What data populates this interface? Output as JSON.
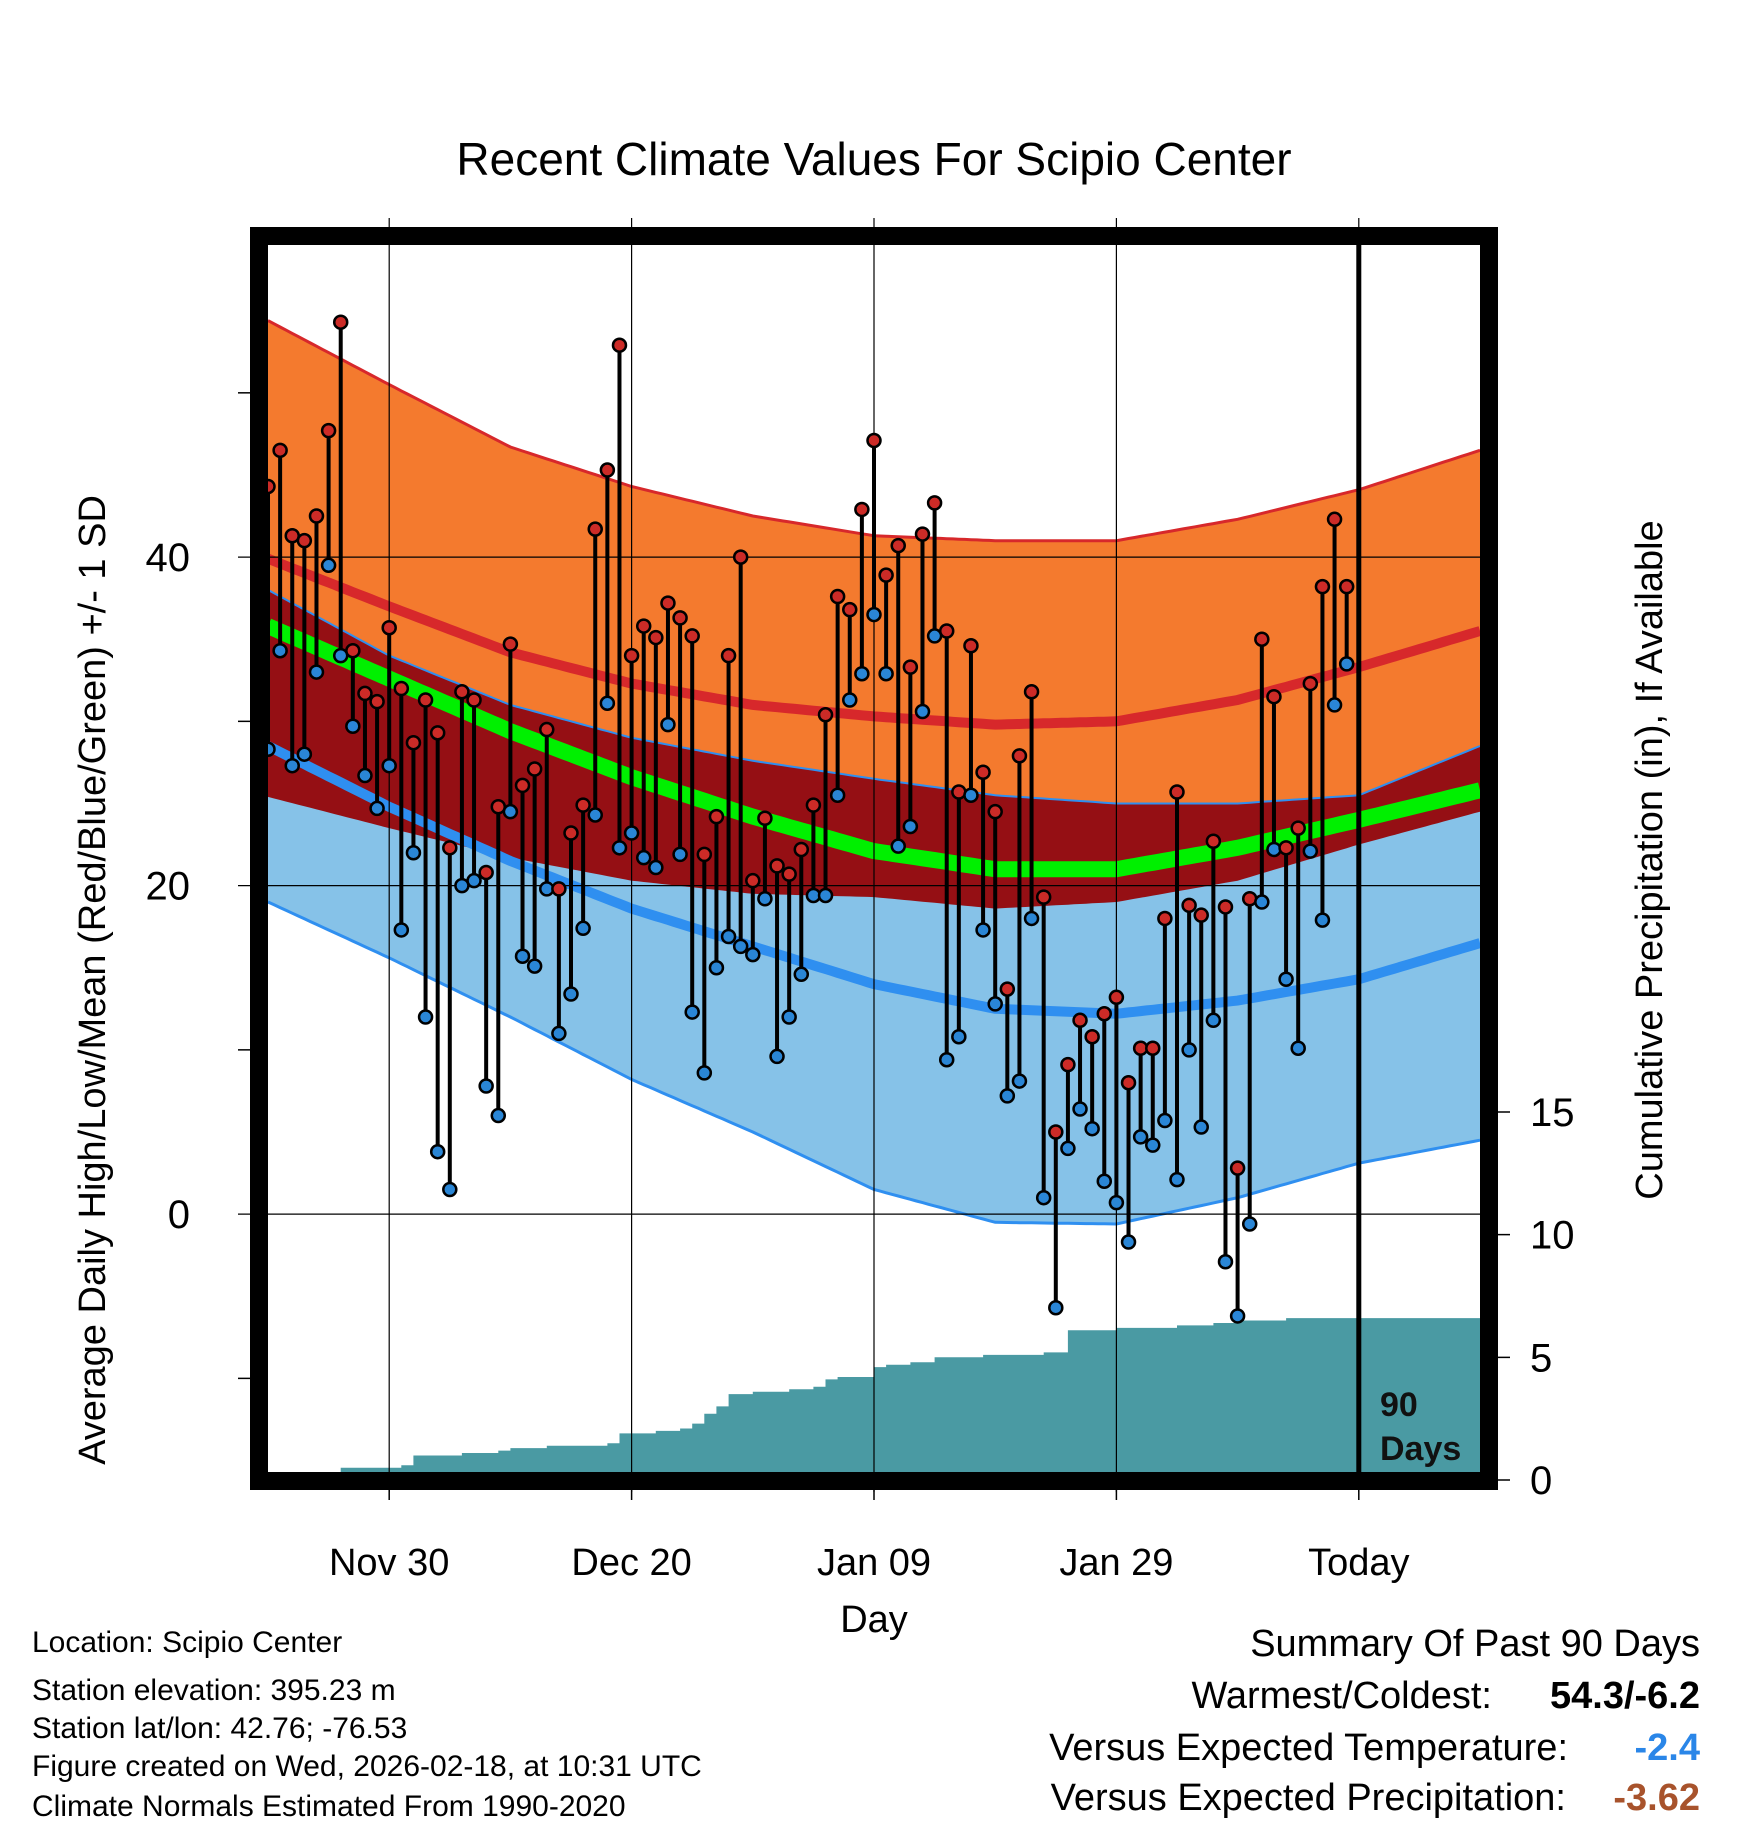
{
  "chart_data": {
    "type": "line",
    "title": "Recent Climate Values For Scipio Center",
    "xlabel": "Day",
    "ylabel_left": "Average Daily High/Low/Mean (Red/Blue/Green) +/- 1 SD",
    "ylabel_right": "Cumulative Precipitation (in), If Available",
    "x_ticks": [
      {
        "day": 20,
        "label": "Nov 30"
      },
      {
        "day": 40,
        "label": "Dec 20"
      },
      {
        "day": 60,
        "label": "Jan 09"
      },
      {
        "day": 80,
        "label": "Jan 29"
      },
      {
        "day": 100,
        "label": "Today"
      }
    ],
    "xlim": [
      10,
      110
    ],
    "ylim": [
      -15.7,
      59.0
    ],
    "y_ticks": [
      0,
      20,
      40
    ],
    "precip_ticks": [
      0,
      5,
      10,
      15
    ],
    "precip_axis_max": 15,
    "days_marker": {
      "day": 100,
      "label_line1": "90",
      "label_line2": "Days"
    },
    "normals": [
      {
        "day": 10,
        "high": 39.9,
        "high_sd": 14.5,
        "low": 28.5,
        "low_sd": 9.5,
        "mean": 35.8
      },
      {
        "day": 20,
        "high": 37.0,
        "high_sd": 13.5,
        "low": 24.8,
        "low_sd": 9.2,
        "mean": 32.6
      },
      {
        "day": 30,
        "high": 34.2,
        "high_sd": 12.5,
        "low": 21.5,
        "low_sd": 9.5,
        "mean": 29.4
      },
      {
        "day": 40,
        "high": 32.3,
        "high_sd": 12.0,
        "low": 18.6,
        "low_sd": 10.4,
        "mean": 26.6
      },
      {
        "day": 50,
        "high": 31.0,
        "high_sd": 11.5,
        "low": 16.3,
        "low_sd": 11.3,
        "mean": 24.2
      },
      {
        "day": 60,
        "high": 30.3,
        "high_sd": 11.0,
        "low": 14.0,
        "low_sd": 12.5,
        "mean": 22.1
      },
      {
        "day": 70,
        "high": 29.8,
        "high_sd": 11.2,
        "low": 12.5,
        "low_sd": 13.0,
        "mean": 21.0
      },
      {
        "day": 80,
        "high": 30.0,
        "high_sd": 11.0,
        "low": 12.2,
        "low_sd": 12.8,
        "mean": 21.0
      },
      {
        "day": 90,
        "high": 31.3,
        "high_sd": 11.0,
        "low": 13.0,
        "low_sd": 12.0,
        "mean": 22.3
      },
      {
        "day": 100,
        "high": 33.3,
        "high_sd": 10.8,
        "low": 14.3,
        "low_sd": 11.2,
        "mean": 24.0
      },
      {
        "day": 110,
        "high": 35.5,
        "high_sd": 11.0,
        "low": 16.5,
        "low_sd": 12.0,
        "mean": 25.8
      }
    ],
    "daily": [
      {
        "day": 10,
        "high": 44.3,
        "low": 28.3
      },
      {
        "day": 11,
        "high": 46.5,
        "low": 34.3
      },
      {
        "day": 12,
        "high": 41.3,
        "low": 27.3
      },
      {
        "day": 13,
        "high": 41.0,
        "low": 28.0
      },
      {
        "day": 14,
        "high": 42.5,
        "low": 33.0
      },
      {
        "day": 15,
        "high": 47.7,
        "low": 39.5
      },
      {
        "day": 16,
        "high": 54.3,
        "low": 34.0
      },
      {
        "day": 17,
        "high": 34.3,
        "low": 29.7
      },
      {
        "day": 18,
        "high": 31.7,
        "low": 26.7
      },
      {
        "day": 19,
        "high": 31.2,
        "low": 24.7
      },
      {
        "day": 20,
        "high": 35.7,
        "low": 27.3
      },
      {
        "day": 21,
        "high": 32.0,
        "low": 17.3
      },
      {
        "day": 22,
        "high": 28.7,
        "low": 22.0
      },
      {
        "day": 23,
        "high": 31.3,
        "low": 12.0
      },
      {
        "day": 24,
        "high": 29.3,
        "low": 3.8
      },
      {
        "day": 25,
        "high": 22.3,
        "low": 1.5
      },
      {
        "day": 26,
        "high": 31.8,
        "low": 20.0
      },
      {
        "day": 27,
        "high": 31.3,
        "low": 20.3
      },
      {
        "day": 28,
        "high": 20.8,
        "low": 7.8
      },
      {
        "day": 29,
        "high": 24.8,
        "low": 6.0
      },
      {
        "day": 30,
        "high": 34.7,
        "low": 24.5
      },
      {
        "day": 31,
        "high": 26.1,
        "low": 15.7
      },
      {
        "day": 32,
        "high": 27.1,
        "low": 15.1
      },
      {
        "day": 33,
        "high": 29.5,
        "low": 19.8
      },
      {
        "day": 34,
        "high": 19.8,
        "low": 11.0
      },
      {
        "day": 35,
        "high": 23.2,
        "low": 13.4
      },
      {
        "day": 36,
        "high": 24.9,
        "low": 17.4
      },
      {
        "day": 37,
        "high": 41.7,
        "low": 24.3
      },
      {
        "day": 38,
        "high": 45.3,
        "low": 31.1
      },
      {
        "day": 39,
        "high": 52.9,
        "low": 22.3
      },
      {
        "day": 40,
        "high": 34.0,
        "low": 23.2
      },
      {
        "day": 41,
        "high": 35.8,
        "low": 21.7
      },
      {
        "day": 42,
        "high": 35.1,
        "low": 21.1
      },
      {
        "day": 43,
        "high": 37.2,
        "low": 29.8
      },
      {
        "day": 44,
        "high": 36.3,
        "low": 21.9
      },
      {
        "day": 45,
        "high": 35.2,
        "low": 12.3
      },
      {
        "day": 46,
        "high": 21.9,
        "low": 8.6
      },
      {
        "day": 47,
        "high": 24.2,
        "low": 15.0
      },
      {
        "day": 48,
        "high": 34.0,
        "low": 16.9
      },
      {
        "day": 49,
        "high": 40.0,
        "low": 16.3
      },
      {
        "day": 50,
        "high": 20.3,
        "low": 15.8
      },
      {
        "day": 51,
        "high": 24.1,
        "low": 19.2
      },
      {
        "day": 52,
        "high": 21.2,
        "low": 9.6
      },
      {
        "day": 53,
        "high": 20.7,
        "low": 12.0
      },
      {
        "day": 54,
        "high": 22.2,
        "low": 14.6
      },
      {
        "day": 55,
        "high": 24.9,
        "low": 19.4
      },
      {
        "day": 56,
        "high": 30.4,
        "low": 19.4
      },
      {
        "day": 57,
        "high": 37.6,
        "low": 25.5
      },
      {
        "day": 58,
        "high": 36.8,
        "low": 31.3
      },
      {
        "day": 59,
        "high": 42.9,
        "low": 32.9
      },
      {
        "day": 60,
        "high": 47.1,
        "low": 36.5
      },
      {
        "day": 61,
        "high": 38.9,
        "low": 32.9
      },
      {
        "day": 62,
        "high": 40.7,
        "low": 22.4
      },
      {
        "day": 63,
        "high": 33.3,
        "low": 23.6
      },
      {
        "day": 64,
        "high": 41.4,
        "low": 30.6
      },
      {
        "day": 65,
        "high": 43.3,
        "low": 35.2
      },
      {
        "day": 66,
        "high": 35.5,
        "low": 9.4
      },
      {
        "day": 67,
        "high": 25.7,
        "low": 10.8
      },
      {
        "day": 68,
        "high": 34.6,
        "low": 25.5
      },
      {
        "day": 69,
        "high": 26.9,
        "low": 17.3
      },
      {
        "day": 70,
        "high": 24.5,
        "low": 12.8
      },
      {
        "day": 71,
        "high": 13.7,
        "low": 7.2
      },
      {
        "day": 72,
        "high": 27.9,
        "low": 8.1
      },
      {
        "day": 73,
        "high": 31.8,
        "low": 18.0
      },
      {
        "day": 74,
        "high": 19.3,
        "low": 1.0
      },
      {
        "day": 75,
        "high": 5.0,
        "low": -5.7
      },
      {
        "day": 76,
        "high": 9.1,
        "low": 4.0
      },
      {
        "day": 77,
        "high": 11.8,
        "low": 6.4
      },
      {
        "day": 78,
        "high": 10.8,
        "low": 5.2
      },
      {
        "day": 79,
        "high": 12.2,
        "low": 2.0
      },
      {
        "day": 80,
        "high": 13.2,
        "low": 0.7
      },
      {
        "day": 81,
        "high": 8.0,
        "low": -1.7
      },
      {
        "day": 82,
        "high": 10.1,
        "low": 4.7
      },
      {
        "day": 83,
        "high": 10.1,
        "low": 4.2
      },
      {
        "day": 84,
        "high": 18.0,
        "low": 5.7
      },
      {
        "day": 85,
        "high": 25.7,
        "low": 2.1
      },
      {
        "day": 86,
        "high": 18.8,
        "low": 10.0
      },
      {
        "day": 87,
        "high": 18.2,
        "low": 5.3
      },
      {
        "day": 88,
        "high": 22.7,
        "low": 11.8
      },
      {
        "day": 89,
        "high": 18.7,
        "low": -2.9
      },
      {
        "day": 90,
        "high": 2.8,
        "low": -6.2
      },
      {
        "day": 91,
        "high": 19.2,
        "low": -0.6
      },
      {
        "day": 92,
        "high": 35.0,
        "low": 19.0
      },
      {
        "day": 93,
        "high": 31.5,
        "low": 22.2
      },
      {
        "day": 94,
        "high": 22.3,
        "low": 14.3
      },
      {
        "day": 95,
        "high": 23.5,
        "low": 10.1
      },
      {
        "day": 96,
        "high": 32.3,
        "low": 22.1
      },
      {
        "day": 97,
        "high": 38.2,
        "low": 17.9
      },
      {
        "day": 98,
        "high": 42.3,
        "low": 31.0
      },
      {
        "day": 99,
        "high": 38.2,
        "low": 33.5
      }
    ],
    "precip": [
      {
        "day": 10,
        "value": 0.0
      },
      {
        "day": 15,
        "value": 0.0
      },
      {
        "day": 16,
        "value": 0.5
      },
      {
        "day": 20,
        "value": 0.5
      },
      {
        "day": 21,
        "value": 0.6
      },
      {
        "day": 22,
        "value": 1.0
      },
      {
        "day": 26,
        "value": 1.1
      },
      {
        "day": 29,
        "value": 1.2
      },
      {
        "day": 30,
        "value": 1.3
      },
      {
        "day": 33,
        "value": 1.4
      },
      {
        "day": 38,
        "value": 1.5
      },
      {
        "day": 39,
        "value": 1.9
      },
      {
        "day": 42,
        "value": 2.0
      },
      {
        "day": 44,
        "value": 2.1
      },
      {
        "day": 45,
        "value": 2.3
      },
      {
        "day": 46,
        "value": 2.7
      },
      {
        "day": 47,
        "value": 3.0
      },
      {
        "day": 48,
        "value": 3.5
      },
      {
        "day": 50,
        "value": 3.6
      },
      {
        "day": 53,
        "value": 3.7
      },
      {
        "day": 55,
        "value": 3.8
      },
      {
        "day": 56,
        "value": 4.1
      },
      {
        "day": 57,
        "value": 4.2
      },
      {
        "day": 60,
        "value": 4.6
      },
      {
        "day": 61,
        "value": 4.7
      },
      {
        "day": 63,
        "value": 4.8
      },
      {
        "day": 65,
        "value": 5.0
      },
      {
        "day": 69,
        "value": 5.1
      },
      {
        "day": 74,
        "value": 5.2
      },
      {
        "day": 76,
        "value": 6.1
      },
      {
        "day": 80,
        "value": 6.2
      },
      {
        "day": 85,
        "value": 6.3
      },
      {
        "day": 88,
        "value": 6.4
      },
      {
        "day": 90,
        "value": 6.5
      },
      {
        "day": 94,
        "value": 6.6
      },
      {
        "day": 100,
        "value": 6.6
      },
      {
        "day": 110,
        "value": 6.6
      }
    ]
  },
  "info": {
    "location": "Location: Scipio Center",
    "elevation": "Station elevation: 395.23 m",
    "latlon": "Station lat/lon: 42.76; -76.53",
    "created": "Figure created on Wed, 2026-02-18, at 10:31 UTC",
    "normals": "Climate Normals Estimated From 1990-2020"
  },
  "summary": {
    "heading": "Summary Of Past 90 Days",
    "warm_cold_label": "Warmest/Coldest:",
    "warm_cold_value": "54.3/-6.2",
    "temp_label": "Versus Expected Temperature:",
    "temp_value": "-2.4",
    "precip_label": "Versus Expected Precipitation:",
    "precip_value": "-3.62"
  },
  "colors": {
    "high_band": "#f47a2e",
    "high_line": "#d7282b",
    "low_band": "#86c2e8",
    "low_line": "#2f8ff0",
    "overlap": "#950f14",
    "mean": "#00f000",
    "precip": "#4a9aa3",
    "high_dot": "#cc2b27",
    "low_dot": "#2a86d6",
    "temp_value": "#2a86e8",
    "precip_value": "#a8532c"
  }
}
